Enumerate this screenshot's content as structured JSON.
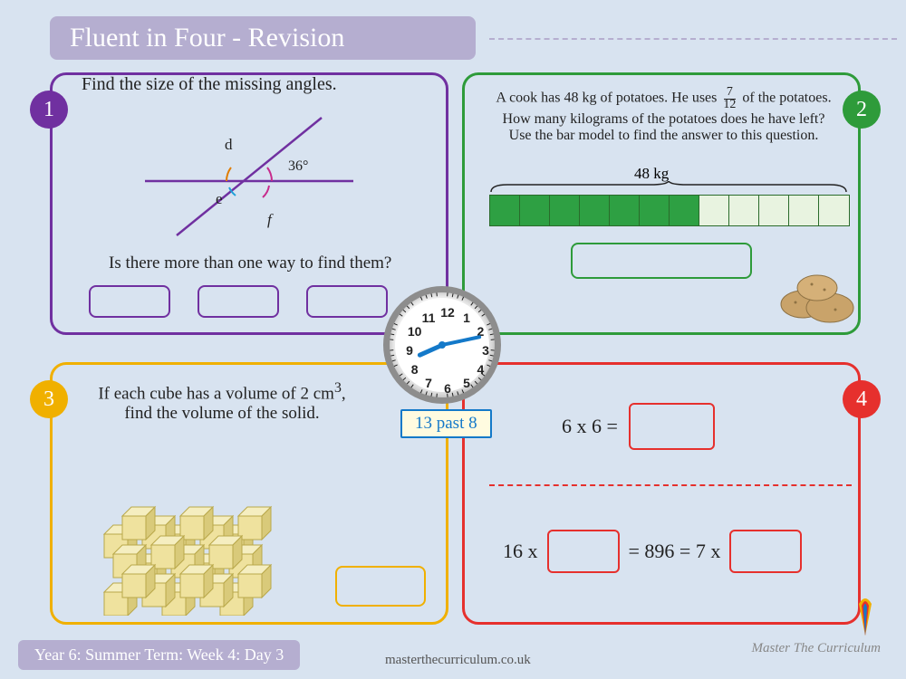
{
  "header": {
    "title": "Fluent in Four - Revision"
  },
  "badges": {
    "n1": "1",
    "n2": "2",
    "n3": "3",
    "n4": "4"
  },
  "q1": {
    "title": "Find the size of the missing angles.",
    "angle_value": "36°",
    "label_d": "d",
    "label_e": "e",
    "label_f": "f",
    "question2": "Is there more than one way to find them?",
    "colors": {
      "border": "#7030a0",
      "arc_known": "#c72b8c",
      "arc_d": "#e07c00",
      "arc_e": "#1ea0d8"
    }
  },
  "q2": {
    "line1_a": "A cook has 48 kg of potatoes. He uses ",
    "frac_n": "7",
    "frac_d": "12",
    "line1_b": " of the potatoes.",
    "line2": "How many kilograms of the potatoes does he have left?",
    "line3": "Use the bar model to find the answer to this question.",
    "bar_total_label": "48 kg",
    "bar_segments": 12,
    "bar_filled": 7,
    "colors": {
      "border": "#2e9b3a",
      "bar_fill": "#2ea043",
      "bar_empty": "#e8f3e0",
      "bar_line": "#2a6b2b"
    }
  },
  "q3": {
    "text_a": "If each cube has a volume of 2 cm",
    "sup": "3",
    "text_b": ",",
    "text_c": "find the volume of the solid.",
    "cube_color": "#efe29e",
    "cube_edge": "#b9a84a",
    "colors": {
      "border": "#f0b000"
    }
  },
  "q4": {
    "eq1_lhs": "6 x 6 =",
    "eq2_a": "16 x",
    "eq2_b": "= 896 = 7 x",
    "colors": {
      "border": "#e6302d"
    }
  },
  "clock": {
    "numbers": [
      "12",
      "1",
      "2",
      "3",
      "4",
      "5",
      "6",
      "7",
      "8",
      "9",
      "10",
      "11"
    ],
    "hour_angle": 246,
    "minute_angle": 78,
    "label": "13 past 8",
    "hand_color": "#1479c9"
  },
  "footer": {
    "left": "Year 6: Summer Term: Week 4: Day 3",
    "url": "masterthecurriculum.co.uk",
    "brand": "Master The Curriculum"
  },
  "page": {
    "background": "#d8e3f0",
    "header_bg": "#b5aed0"
  }
}
